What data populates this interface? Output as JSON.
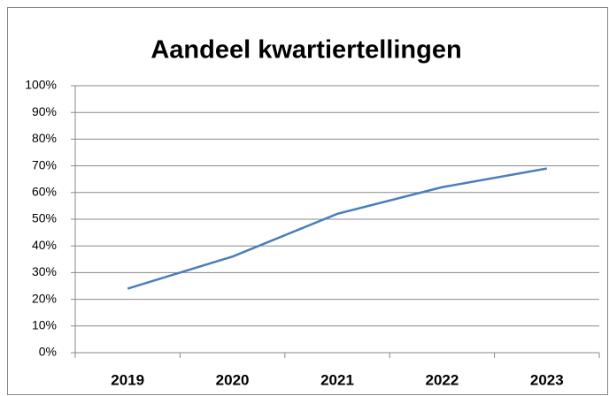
{
  "chart_data": {
    "type": "line",
    "title": "Aandeel kwartiertellingen",
    "categories": [
      "2019",
      "2020",
      "2021",
      "2022",
      "2023"
    ],
    "series": [
      {
        "name": "Aandeel kwartiertellingen",
        "color": "#4a7ebb",
        "values": [
          24,
          36,
          52,
          62,
          69
        ]
      }
    ],
    "ylim": [
      0,
      100
    ],
    "yticks": [
      {
        "value": 0,
        "label": "0%"
      },
      {
        "value": 10,
        "label": "10%"
      },
      {
        "value": 20,
        "label": "20%"
      },
      {
        "value": 30,
        "label": "30%"
      },
      {
        "value": 40,
        "label": "40%"
      },
      {
        "value": 50,
        "label": "50%"
      },
      {
        "value": 60,
        "label": "60%"
      },
      {
        "value": 70,
        "label": "70%"
      },
      {
        "value": 80,
        "label": "80%"
      },
      {
        "value": 90,
        "label": "90%"
      },
      {
        "value": 100,
        "label": "100%"
      }
    ],
    "grid": true
  }
}
